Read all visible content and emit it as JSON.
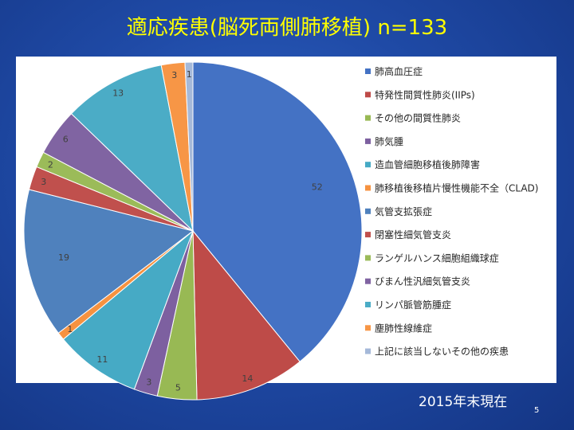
{
  "slide": {
    "title": "適応疾患(脳死両側肺移植) n=133",
    "footer_date": "2015年末現在",
    "page_number": "5"
  },
  "chart_data": {
    "type": "pie",
    "title": "適応疾患(脳死両側肺移植) n=133",
    "legend_position": "right",
    "start_angle_deg": 0,
    "direction": "clockwise",
    "slices": [
      {
        "label": "肺高血圧症",
        "value": 52,
        "color": "#4472c4"
      },
      {
        "label": "特発性間質性肺炎(IIPs)",
        "value": 14,
        "color": "#be4b48"
      },
      {
        "label": "その他の間質性肺炎",
        "value": 5,
        "color": "#98b954"
      },
      {
        "label": "肺気腫",
        "value": 3,
        "color": "#7d60a0"
      },
      {
        "label": "造血管細胞移植後肺障害",
        "value": 11,
        "color": "#46aac5"
      },
      {
        "label": "肺移植後移植片慢性機能不全（CLAD)",
        "value": 1,
        "color": "#f69240"
      },
      {
        "label": "気管支拡張症",
        "value": 19,
        "color": "#4f81bd"
      },
      {
        "label": "閉塞性細気管支炎",
        "value": 3,
        "color": "#c0504d"
      },
      {
        "label": "ランゲルハンス細胞組織球症",
        "value": 2,
        "color": "#9bbb59"
      },
      {
        "label": "びまん性汎細気管支炎",
        "value": 6,
        "color": "#8064a2"
      },
      {
        "label": "リンパ脈管筋腫症",
        "value": 13,
        "color": "#4bacc6"
      },
      {
        "label": "塵肺性線維症",
        "value": 3,
        "color": "#f79646"
      },
      {
        "label": "上記に該当しないその他の疾患",
        "value": 1,
        "color": "#a5b9d9"
      }
    ]
  }
}
